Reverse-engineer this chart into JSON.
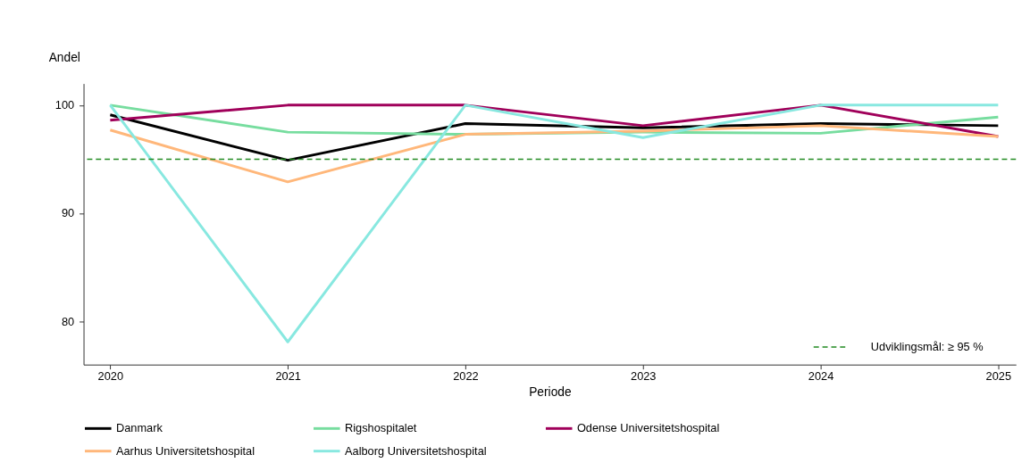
{
  "chart_data": {
    "type": "line",
    "xlabel": "Periode",
    "ylabel": "Andel",
    "x": [
      2020,
      2021,
      2022,
      2023,
      2024,
      2025
    ],
    "xlim": [
      2019.85,
      2025.1
    ],
    "xticks": [
      2020,
      2021,
      2022,
      2023,
      2024,
      2025
    ],
    "ylim": [
      76,
      102
    ],
    "yticks": [
      80,
      90,
      100
    ],
    "series": [
      {
        "name": "Danmark",
        "color": "#000000",
        "values": [
          99.1,
          94.9,
          98.3,
          97.9,
          98.3,
          98.1
        ]
      },
      {
        "name": "Rigshospitalet",
        "color": "#77dd9f",
        "values": [
          100,
          97.5,
          97.3,
          97.5,
          97.4,
          98.9
        ]
      },
      {
        "name": "Odense Universitetshospital",
        "color": "#a0005a",
        "values": [
          98.6,
          100,
          100,
          98.1,
          100,
          97.1
        ]
      },
      {
        "name": "Aarhus Universitetshospital",
        "color": "#ffb77a",
        "values": [
          97.7,
          92.9,
          97.3,
          97.6,
          98.1,
          97.1
        ]
      },
      {
        "name": "Aalborg Universitetshospital",
        "color": "#88e8e0",
        "values": [
          100,
          78.1,
          100,
          97.0,
          100,
          100
        ]
      }
    ],
    "ref_lines": [
      {
        "axis": "y",
        "value": 95,
        "label": "Udviklingsmål: ≥ 95 %",
        "color": "#228b22",
        "line_style": "dashed"
      }
    ],
    "legend": "bottom",
    "grid": false,
    "marker": "none",
    "line_style": "solid"
  }
}
